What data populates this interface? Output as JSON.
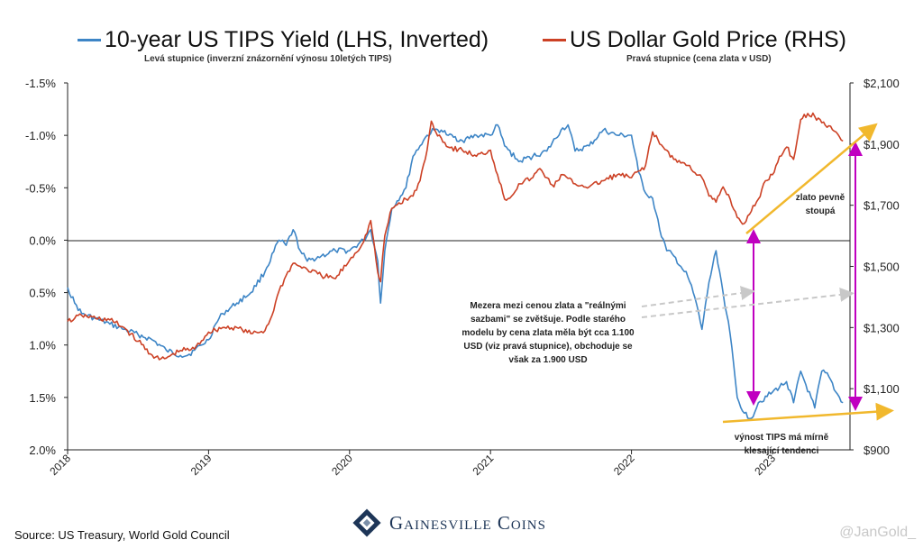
{
  "legend": {
    "tips_label": "10-year US TIPS Yield (LHS, Inverted)",
    "gold_label": "US Dollar Gold Price (RHS)",
    "tips_sub": "Levá stupnice (inverzní znázornění výnosu 10letých TIPS)",
    "gold_sub": "Pravá stupnice (cena zlata v USD)"
  },
  "annotations": {
    "gap_text": "Mezera mezi cenou zlata a \"reálnými sazbami\" se zvětšuje. Podle starého modelu by cena zlata měla být cca 1.100 USD (viz pravá stupnice), obchoduje se však za 1.900 USD",
    "gold_rising": "zlato pevně stoupá",
    "tips_trend": "výnost TIPS má mírně klesající tendenci"
  },
  "footer": {
    "source": "Source: US Treasury, World Gold Council",
    "brand": "Gainesville Coins",
    "handle": "@JanGold_"
  },
  "colors": {
    "tips": "#3d85c6",
    "gold": "#cc4125",
    "trend": "#f1b82d",
    "arrow": "#c000c0",
    "dashed": "#c8c8c8",
    "brand": "#1d3557"
  },
  "chart_data": {
    "type": "line",
    "x_axis": {
      "ticks": [
        "2018",
        "2019",
        "2020",
        "2021",
        "2022",
        "2023"
      ],
      "range": [
        "2018-01",
        "2023-07"
      ]
    },
    "y_left": {
      "ticks": [
        "-1.5%",
        "-1.0%",
        "-0.5%",
        "0.0%",
        "0.5%",
        "1.0%",
        "1.5%",
        "2.0%"
      ],
      "range": [
        -1.5,
        2.0
      ],
      "inverted": true,
      "unit": "%"
    },
    "y_right": {
      "ticks": [
        "$2,100",
        "$1,900",
        "$1,700",
        "$1,500",
        "$1,300",
        "$1,100",
        "$900"
      ],
      "range": [
        900,
        2100
      ],
      "unit": "USD"
    },
    "grid": false,
    "series": [
      {
        "name": "10-year US TIPS Yield (LHS, Inverted)",
        "axis": "left",
        "x": [
          2018.0,
          2018.05,
          2018.1,
          2018.2,
          2018.3,
          2018.4,
          2018.5,
          2018.6,
          2018.7,
          2018.8,
          2018.85,
          2018.9,
          2018.95,
          2019.0,
          2019.05,
          2019.1,
          2019.2,
          2019.3,
          2019.4,
          2019.5,
          2019.55,
          2019.6,
          2019.65,
          2019.7,
          2019.8,
          2019.9,
          2020.0,
          2020.1,
          2020.15,
          2020.2,
          2020.22,
          2020.25,
          2020.3,
          2020.4,
          2020.45,
          2020.5,
          2020.55,
          2020.6,
          2020.65,
          2020.7,
          2020.8,
          2020.9,
          2021.0,
          2021.05,
          2021.1,
          2021.2,
          2021.3,
          2021.4,
          2021.5,
          2021.55,
          2021.6,
          2021.7,
          2021.8,
          2021.9,
          2022.0,
          2022.05,
          2022.1,
          2022.15,
          2022.2,
          2022.25,
          2022.3,
          2022.35,
          2022.4,
          2022.45,
          2022.5,
          2022.55,
          2022.6,
          2022.65,
          2022.7,
          2022.75,
          2022.8,
          2022.85,
          2022.9,
          2023.0,
          2023.1,
          2023.15,
          2023.2,
          2023.3,
          2023.35,
          2023.4,
          2023.45,
          2023.5
        ],
        "y": [
          0.45,
          0.6,
          0.7,
          0.75,
          0.8,
          0.85,
          0.9,
          0.95,
          1.05,
          1.1,
          1.1,
          1.05,
          1.0,
          0.95,
          0.8,
          0.7,
          0.6,
          0.5,
          0.3,
          0.0,
          0.05,
          -0.1,
          0.1,
          0.2,
          0.15,
          0.1,
          0.1,
          0.0,
          -0.1,
          0.2,
          0.6,
          0.1,
          -0.3,
          -0.5,
          -0.8,
          -0.9,
          -1.0,
          -1.05,
          -1.05,
          -1.0,
          -0.95,
          -1.0,
          -1.0,
          -1.1,
          -0.9,
          -0.75,
          -0.8,
          -0.85,
          -1.05,
          -1.1,
          -0.85,
          -0.9,
          -1.05,
          -1.0,
          -1.0,
          -0.65,
          -0.45,
          -0.4,
          -0.1,
          0.1,
          0.15,
          0.25,
          0.35,
          0.55,
          0.85,
          0.4,
          0.1,
          0.5,
          0.9,
          1.5,
          1.65,
          1.7,
          1.55,
          1.45,
          1.35,
          1.55,
          1.25,
          1.6,
          1.25,
          1.3,
          1.45,
          1.55
        ]
      },
      {
        "name": "US Dollar Gold Price (RHS)",
        "axis": "right",
        "x": [
          2018.0,
          2018.05,
          2018.1,
          2018.2,
          2018.3,
          2018.4,
          2018.5,
          2018.6,
          2018.65,
          2018.7,
          2018.8,
          2018.9,
          2019.0,
          2019.1,
          2019.2,
          2019.3,
          2019.4,
          2019.45,
          2019.5,
          2019.55,
          2019.6,
          2019.65,
          2019.7,
          2019.8,
          2019.9,
          2020.0,
          2020.1,
          2020.15,
          2020.2,
          2020.22,
          2020.25,
          2020.3,
          2020.4,
          2020.45,
          2020.5,
          2020.55,
          2020.58,
          2020.6,
          2020.65,
          2020.7,
          2020.8,
          2020.9,
          2021.0,
          2021.05,
          2021.1,
          2021.15,
          2021.2,
          2021.3,
          2021.35,
          2021.4,
          2021.45,
          2021.5,
          2021.6,
          2021.7,
          2021.8,
          2021.9,
          2022.0,
          2022.1,
          2022.15,
          2022.2,
          2022.25,
          2022.3,
          2022.4,
          2022.5,
          2022.55,
          2022.6,
          2022.65,
          2022.7,
          2022.75,
          2022.8,
          2022.85,
          2022.9,
          2022.95,
          2023.0,
          2023.05,
          2023.1,
          2023.15,
          2023.2,
          2023.25,
          2023.3,
          2023.35,
          2023.4,
          2023.45,
          2023.5
        ],
        "y": [
          1320,
          1330,
          1340,
          1330,
          1325,
          1300,
          1255,
          1210,
          1195,
          1200,
          1225,
          1230,
          1285,
          1300,
          1300,
          1280,
          1290,
          1340,
          1420,
          1470,
          1510,
          1500,
          1490,
          1470,
          1460,
          1520,
          1580,
          1650,
          1480,
          1450,
          1600,
          1690,
          1720,
          1730,
          1780,
          1880,
          1975,
          1950,
          1920,
          1890,
          1880,
          1860,
          1880,
          1800,
          1720,
          1730,
          1770,
          1790,
          1820,
          1790,
          1760,
          1800,
          1770,
          1760,
          1780,
          1800,
          1790,
          1830,
          1940,
          1900,
          1880,
          1850,
          1830,
          1790,
          1730,
          1710,
          1760,
          1720,
          1660,
          1640,
          1680,
          1720,
          1780,
          1800,
          1860,
          1890,
          1850,
          1980,
          2000,
          1990,
          1970,
          1960,
          1940,
          1910
        ]
      }
    ]
  }
}
